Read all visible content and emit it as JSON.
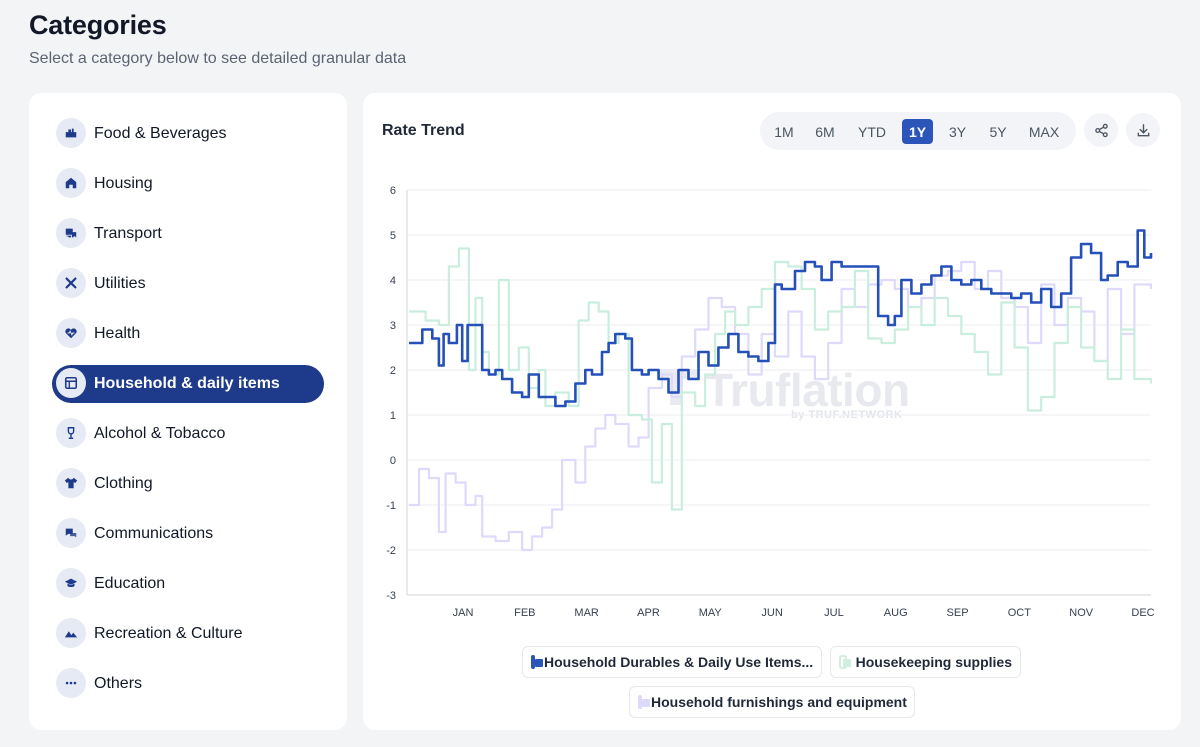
{
  "header": {
    "title": "Categories",
    "subtitle": "Select a category below to see detailed granular data"
  },
  "sidebar": {
    "items": [
      {
        "label": "Food & Beverages",
        "icon": "food-icon"
      },
      {
        "label": "Housing",
        "icon": "house-icon"
      },
      {
        "label": "Transport",
        "icon": "transport-icon"
      },
      {
        "label": "Utilities",
        "icon": "tools-icon"
      },
      {
        "label": "Health",
        "icon": "heart-icon"
      },
      {
        "label": "Household & daily items",
        "icon": "household-icon",
        "active": true
      },
      {
        "label": "Alcohol & Tobacco",
        "icon": "glass-icon"
      },
      {
        "label": "Clothing",
        "icon": "shirt-icon"
      },
      {
        "label": "Communications",
        "icon": "chat-icon"
      },
      {
        "label": "Education",
        "icon": "graduation-cap-icon"
      },
      {
        "label": "Recreation & Culture",
        "icon": "mountain-icon"
      },
      {
        "label": "Others",
        "icon": "more-icon"
      }
    ]
  },
  "chart_panel": {
    "title": "Rate Trend",
    "ranges": [
      "1M",
      "6M",
      "YTD",
      "1Y",
      "3Y",
      "5Y",
      "MAX"
    ],
    "active_range": "1Y",
    "share_icon": "share-icon",
    "download_icon": "download-icon",
    "watermark": {
      "name": "Truflation",
      "by": "by TRUF.NETWORK"
    }
  },
  "colors": {
    "primary": "#1e3a8a",
    "series_blue": "#2450b8",
    "series_green": "#c9eedd",
    "series_lavender": "#dedafb"
  },
  "chart_data": {
    "type": "line",
    "title": "",
    "xlabel": "",
    "ylabel": "",
    "x_ticks": [
      "JAN",
      "FEB",
      "MAR",
      "APR",
      "MAY",
      "JUN",
      "JUL",
      "AUG",
      "SEP",
      "OCT",
      "NOV",
      "DEC"
    ],
    "y_ticks": [
      6,
      5,
      4,
      3,
      2,
      1,
      0,
      -1,
      -2,
      -3
    ],
    "ylim": [
      -3,
      6
    ],
    "grid": true,
    "legend_position": "bottom",
    "series": [
      {
        "name": "Household Durables & Daily Use Items...",
        "color": "#2450b8",
        "x": [
          0.0,
          0.2,
          0.35,
          0.45,
          0.52,
          0.6,
          0.72,
          0.8,
          0.88,
          1.0,
          1.1,
          1.2,
          1.3,
          1.4,
          1.55,
          1.7,
          1.8,
          1.95,
          2.05,
          2.2,
          2.35,
          2.5,
          2.65,
          2.75,
          2.9,
          3.0,
          3.1,
          3.25,
          3.35,
          3.5,
          3.6,
          3.75,
          3.9,
          4.05,
          4.2,
          4.35,
          4.5,
          4.65,
          4.8,
          4.95,
          5.1,
          5.25,
          5.4,
          5.5,
          5.6,
          5.8,
          5.95,
          6.1,
          6.2,
          6.35,
          6.5,
          6.7,
          6.9,
          7.05,
          7.2,
          7.3,
          7.4,
          7.55,
          7.7,
          7.85,
          8.0,
          8.15,
          8.3,
          8.45,
          8.6,
          8.75,
          8.9,
          9.05,
          9.2,
          9.35,
          9.5,
          9.65,
          9.8,
          9.95,
          10.1,
          10.25,
          10.4,
          10.5,
          10.65,
          10.8,
          10.95,
          11.05,
          11.15
        ],
        "y": [
          2.6,
          2.9,
          2.7,
          2.1,
          2.8,
          2.6,
          3.0,
          2.2,
          3.0,
          3.0,
          2.0,
          1.9,
          2.0,
          1.8,
          1.5,
          1.4,
          1.9,
          1.4,
          1.4,
          1.2,
          1.3,
          1.7,
          2.0,
          1.9,
          2.4,
          2.6,
          2.8,
          2.7,
          2.0,
          1.9,
          2.0,
          1.8,
          1.5,
          2.0,
          1.8,
          2.4,
          2.1,
          2.5,
          2.8,
          2.4,
          2.3,
          2.2,
          2.6,
          3.9,
          3.8,
          4.2,
          4.4,
          4.3,
          4.0,
          4.4,
          4.3,
          4.3,
          4.3,
          3.2,
          3.0,
          3.2,
          4.0,
          3.7,
          3.9,
          4.1,
          4.3,
          4.0,
          3.9,
          4.0,
          3.8,
          3.7,
          3.7,
          3.6,
          3.7,
          3.5,
          3.8,
          3.4,
          3.7,
          4.5,
          4.8,
          4.6,
          4.0,
          4.1,
          4.4,
          4.3,
          5.1,
          4.5,
          4.6
        ]
      },
      {
        "name": "Housekeeping supplies",
        "color": "#c9eedd",
        "x": [
          0.0,
          0.25,
          0.45,
          0.6,
          0.75,
          0.9,
          1.0,
          1.1,
          1.2,
          1.35,
          1.5,
          1.65,
          1.8,
          1.95,
          2.05,
          2.2,
          2.4,
          2.55,
          2.7,
          2.85,
          3.0,
          3.15,
          3.3,
          3.5,
          3.65,
          3.8,
          3.95,
          4.1,
          4.3,
          4.45,
          4.6,
          4.75,
          4.9,
          5.1,
          5.3,
          5.5,
          5.7,
          5.9,
          6.1,
          6.3,
          6.5,
          6.7,
          6.9,
          7.1,
          7.3,
          7.5,
          7.7,
          7.9,
          8.1,
          8.3,
          8.5,
          8.7,
          8.9,
          9.1,
          9.3,
          9.5,
          9.7,
          9.9,
          10.1,
          10.3,
          10.5,
          10.7,
          10.9,
          11.15
        ],
        "y": [
          3.3,
          3.1,
          3.0,
          4.3,
          4.7,
          2.0,
          3.6,
          2.4,
          1.9,
          4.0,
          2.0,
          2.5,
          1.6,
          2.0,
          1.2,
          1.5,
          1.2,
          3.1,
          3.5,
          3.3,
          2.6,
          2.8,
          1.0,
          0.9,
          -0.5,
          0.8,
          -1.1,
          1.5,
          1.2,
          1.9,
          2.8,
          3.3,
          3.0,
          3.4,
          3.8,
          4.4,
          4.3,
          3.8,
          2.9,
          3.3,
          3.4,
          4.2,
          2.7,
          2.6,
          2.9,
          3.4,
          3.0,
          3.6,
          3.2,
          2.8,
          2.4,
          1.9,
          3.5,
          2.5,
          1.1,
          1.4,
          2.6,
          3.4,
          2.5,
          2.2,
          1.8,
          2.9,
          1.8,
          1.7
        ]
      },
      {
        "name": "Household furnishings and equipment",
        "color": "#dedafb",
        "x": [
          0.0,
          0.15,
          0.3,
          0.45,
          0.55,
          0.7,
          0.85,
          1.0,
          1.1,
          1.3,
          1.5,
          1.7,
          1.85,
          2.0,
          2.15,
          2.3,
          2.5,
          2.65,
          2.8,
          2.95,
          3.1,
          3.3,
          3.45,
          3.6,
          3.8,
          3.95,
          4.1,
          4.3,
          4.5,
          4.7,
          4.9,
          5.1,
          5.3,
          5.5,
          5.7,
          5.9,
          6.1,
          6.3,
          6.5,
          6.7,
          6.9,
          7.1,
          7.3,
          7.5,
          7.7,
          7.9,
          8.1,
          8.3,
          8.5,
          8.7,
          8.9,
          9.1,
          9.3,
          9.5,
          9.7,
          9.9,
          10.1,
          10.3,
          10.5,
          10.7,
          10.9,
          11.15
        ],
        "y": [
          -1.0,
          -0.2,
          -0.4,
          -1.6,
          -0.3,
          -0.5,
          -1.0,
          -0.8,
          -1.7,
          -1.8,
          -1.6,
          -2.0,
          -1.7,
          -1.5,
          -1.1,
          0.0,
          -0.5,
          0.3,
          0.7,
          1.0,
          0.8,
          0.3,
          0.5,
          1.6,
          1.9,
          1.4,
          2.3,
          2.9,
          3.6,
          3.4,
          2.8,
          1.9,
          2.8,
          2.3,
          3.3,
          2.3,
          1.8,
          2.6,
          3.8,
          3.4,
          3.9,
          4.0,
          3.8,
          3.4,
          3.6,
          4.1,
          4.2,
          4.4,
          3.8,
          4.2,
          3.6,
          3.4,
          2.6,
          3.9,
          3.0,
          3.6,
          3.3,
          2.2,
          3.8,
          2.8,
          3.9,
          3.8
        ]
      }
    ]
  }
}
